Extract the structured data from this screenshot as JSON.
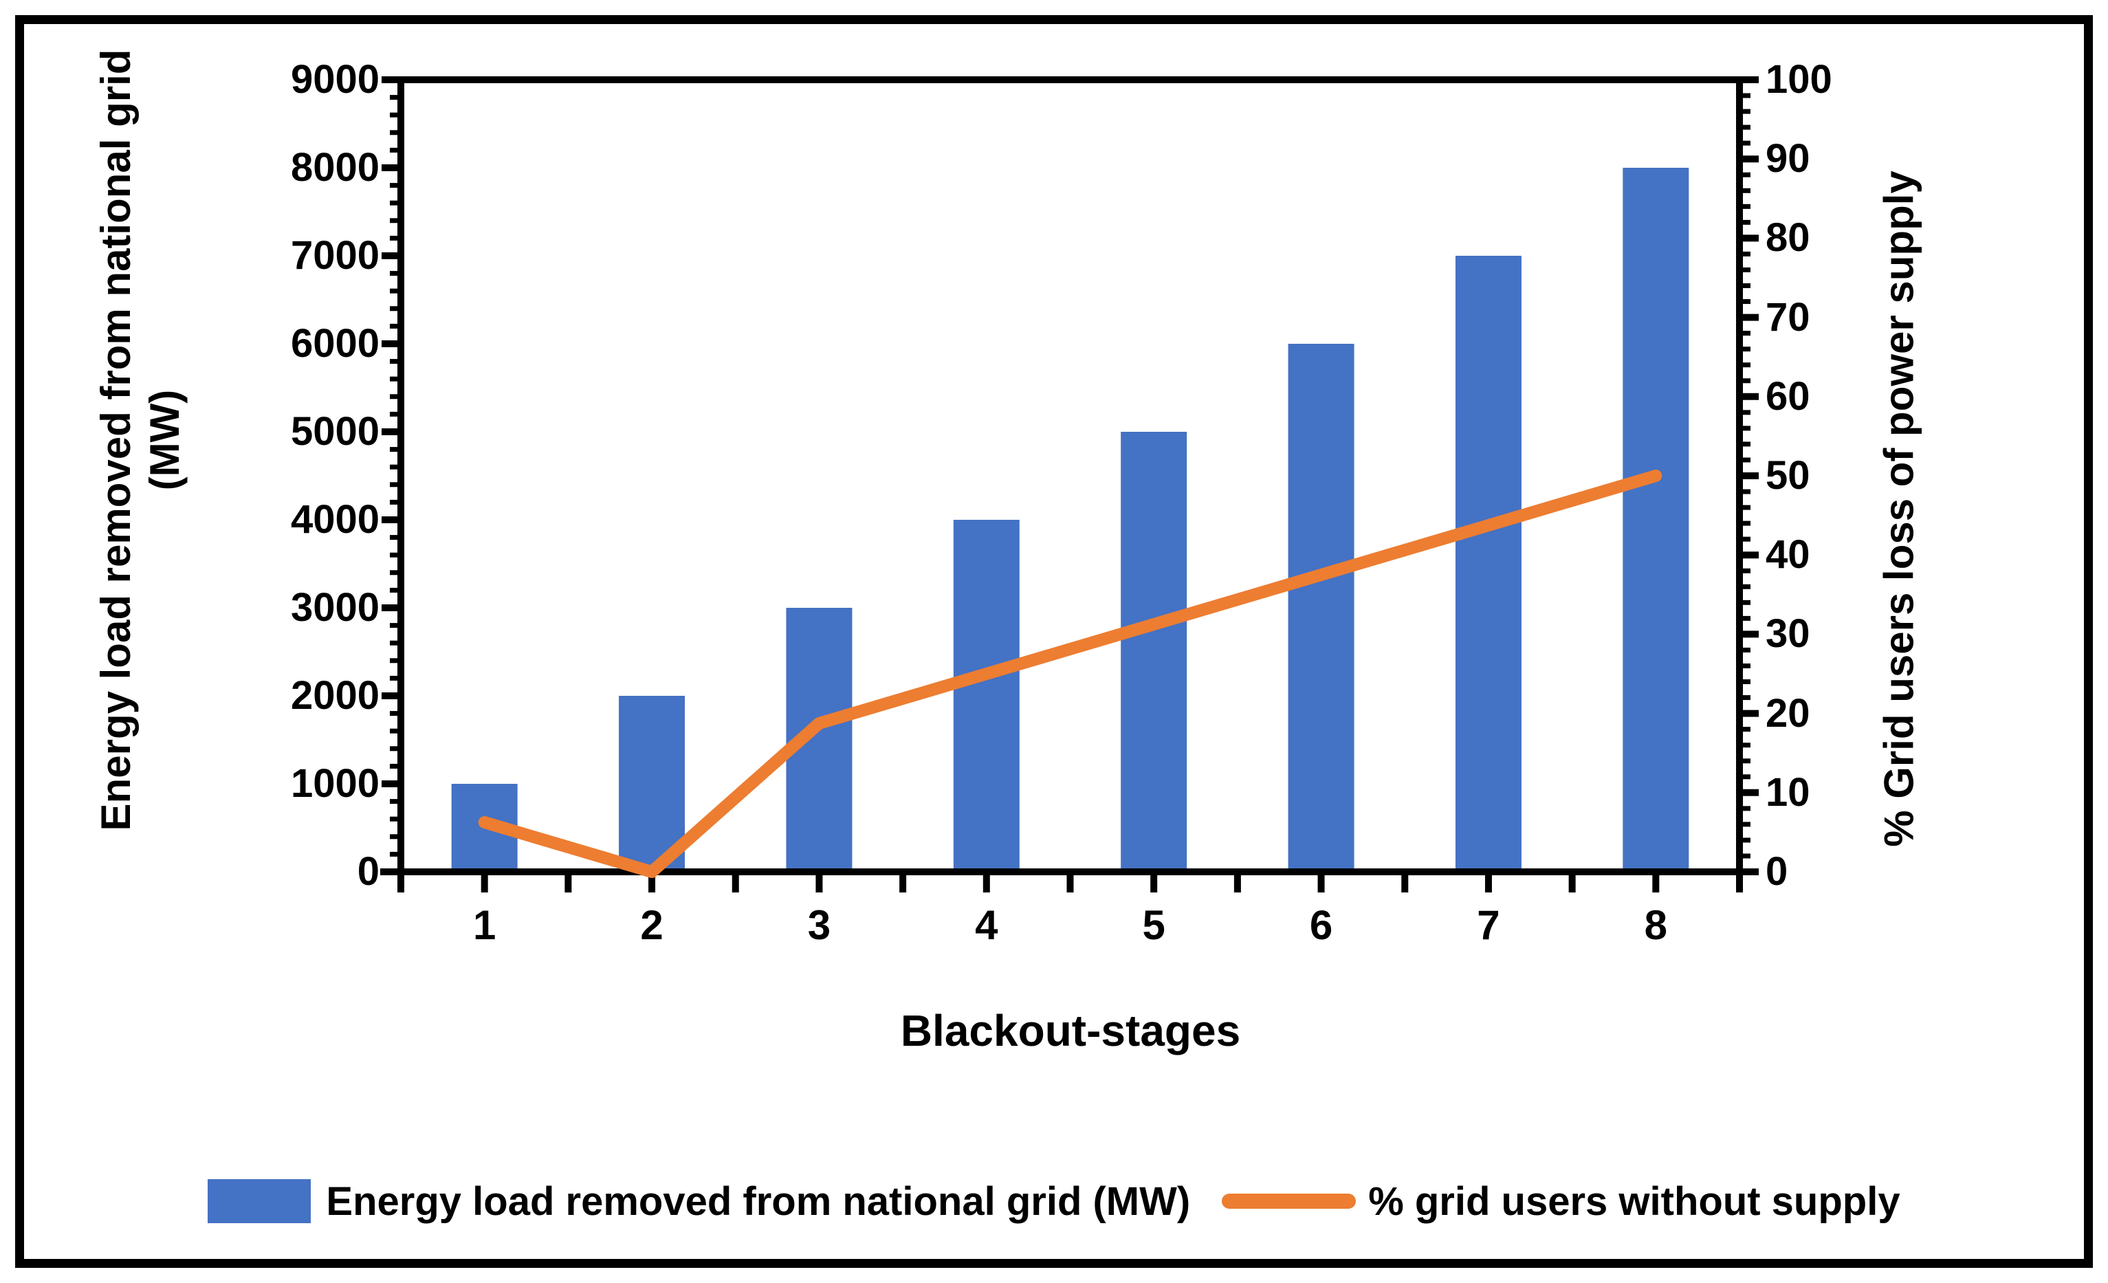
{
  "axis_titles": {
    "left_line1": "Energy load removed from national grid",
    "left_line2": "(MW)",
    "right": "% Grid users loss of power supply",
    "x": "Blackout-stages"
  },
  "legend": {
    "bar_label": "Energy load removed from national grid (MW)",
    "line_label": "% grid users without supply"
  },
  "colors": {
    "bar": "#4472C4",
    "line": "#ED7D31",
    "axis": "#000000",
    "background": "#FFFFFF"
  },
  "chart_data": {
    "type": "bar+line combo",
    "categories": [
      "1",
      "2",
      "3",
      "4",
      "5",
      "6",
      "7",
      "8"
    ],
    "series": [
      {
        "name": "Energy load removed from national grid (MW)",
        "type": "bar",
        "axis": "left",
        "color": "#4472C4",
        "values": [
          1000,
          2000,
          3000,
          4000,
          5000,
          6000,
          7000,
          8000
        ]
      },
      {
        "name": "% grid users without supply",
        "type": "line",
        "axis": "right",
        "color": "#ED7D31",
        "values": [
          6.25,
          0,
          18.75,
          25,
          31.25,
          37.5,
          43.75,
          50
        ]
      }
    ],
    "left_axis": {
      "title": "Energy load removed from national grid (MW)",
      "min": 0,
      "max": 9000,
      "major_interval": 1000,
      "minor_interval": 200,
      "tick_labels": [
        "0",
        "1000",
        "2000",
        "3000",
        "4000",
        "5000",
        "6000",
        "7000",
        "8000",
        "9000"
      ]
    },
    "right_axis": {
      "title": "% Grid users loss of power supply",
      "min": 0,
      "max": 100,
      "major_interval": 10,
      "minor_interval": 2,
      "tick_labels": [
        "0",
        "10",
        "20",
        "30",
        "40",
        "50",
        "60",
        "70",
        "80",
        "90",
        "100"
      ]
    },
    "x_axis": {
      "title": "Blackout-stages",
      "tick_every_half_category": true
    },
    "grid": false,
    "legend_position": "bottom"
  }
}
